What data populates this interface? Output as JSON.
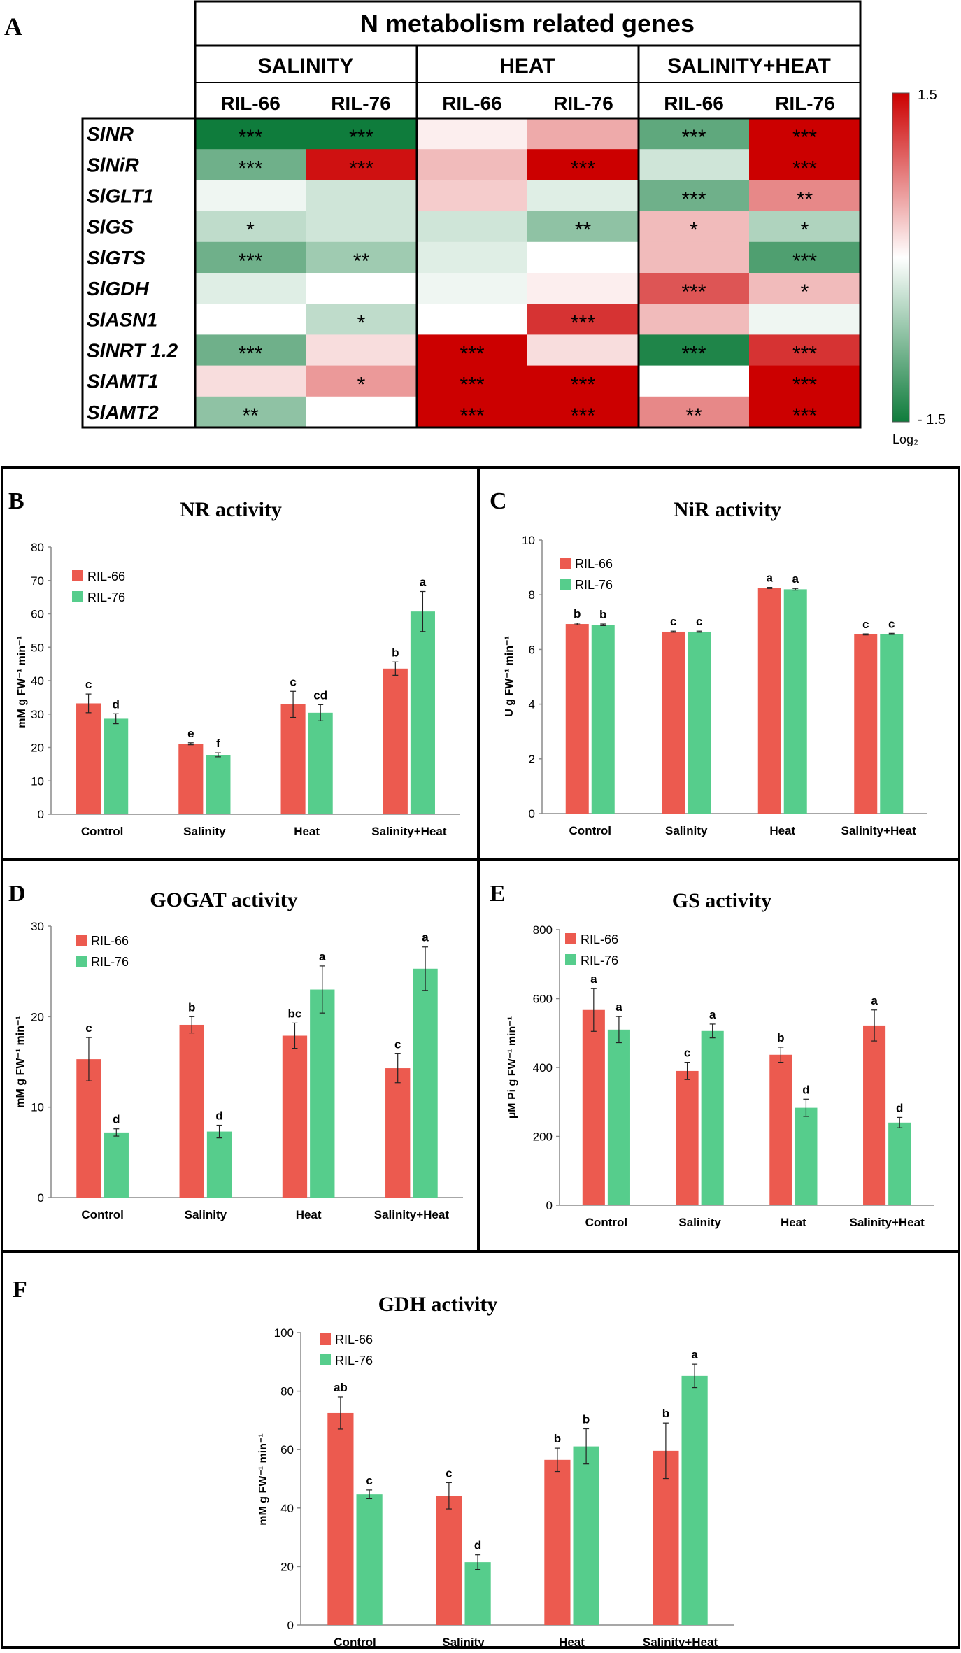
{
  "chart_data": [
    {
      "type": "heatmap",
      "panel_label": "A",
      "title": "N metabolism related genes",
      "conditions": [
        "SALINITY",
        "HEAT",
        "SALINITY+HEAT"
      ],
      "lines": [
        "RIL-66",
        "RIL-76",
        "RIL-66",
        "RIL-76",
        "RIL-66",
        "RIL-76"
      ],
      "genes": [
        "SlNR",
        "SlNiR",
        "SlGLT1",
        "SlGS",
        "SlGTS",
        "SlGDH",
        "SlASN1",
        "SlNRT 1.2",
        "SlAMT1",
        "SlAMT2"
      ],
      "values": [
        [
          -1.5,
          -1.5,
          0.1,
          0.5,
          -1.0,
          1.5
        ],
        [
          -0.9,
          1.4,
          0.4,
          1.5,
          -0.3,
          1.5
        ],
        [
          -0.1,
          -0.3,
          0.3,
          -0.2,
          -0.9,
          0.7
        ],
        [
          -0.4,
          -0.3,
          -0.3,
          -0.7,
          0.4,
          -0.5
        ],
        [
          -0.9,
          -0.6,
          -0.2,
          0.0,
          0.4,
          -1.1
        ],
        [
          -0.2,
          0.0,
          -0.1,
          0.1,
          1.0,
          0.4
        ],
        [
          0.0,
          -0.4,
          0.0,
          1.2,
          0.4,
          -0.1
        ],
        [
          -0.9,
          0.2,
          1.5,
          0.2,
          -1.4,
          1.2
        ],
        [
          0.2,
          0.6,
          1.5,
          1.5,
          0.0,
          1.5
        ],
        [
          -0.7,
          0.0,
          1.5,
          1.5,
          0.7,
          1.5
        ]
      ],
      "significance": [
        [
          "***",
          "***",
          "",
          "",
          "***",
          "***"
        ],
        [
          "***",
          "***",
          "",
          "***",
          "",
          "***"
        ],
        [
          "",
          "",
          "",
          "",
          "***",
          "**"
        ],
        [
          "*",
          "",
          "",
          "**",
          "*",
          "*"
        ],
        [
          "***",
          "**",
          "",
          "",
          "",
          "***"
        ],
        [
          "",
          "",
          "",
          "",
          "***",
          "*"
        ],
        [
          "",
          "*",
          "",
          "***",
          "",
          ""
        ],
        [
          "***",
          "",
          "***",
          "",
          "***",
          "***"
        ],
        [
          "",
          "*",
          "***",
          "***",
          "",
          "***"
        ],
        [
          "**",
          "",
          "***",
          "***",
          "**",
          "***"
        ]
      ],
      "scale": {
        "max_label": "1.5",
        "min_label": "- 1.5",
        "unit": "Log₂",
        "min": -1.5,
        "max": 1.5,
        "high_color": "#cc0000",
        "mid_color": "#ffffff",
        "low_color": "#0f7c3c"
      }
    },
    {
      "type": "bar",
      "panel_label": "B",
      "title": "NR activity",
      "ylabel": "mM g FW⁻¹ min⁻¹",
      "ylim": [
        0,
        80
      ],
      "yticks": [
        0,
        10,
        20,
        30,
        40,
        50,
        60,
        70,
        80
      ],
      "categories": [
        "Control",
        "Salinity",
        "Heat",
        "Salinity+Heat"
      ],
      "series": [
        {
          "name": "RIL-66",
          "color": "#ec5a4f",
          "values": [
            33.2,
            21.1,
            32.9,
            43.6
          ],
          "errors": [
            2.8,
            0.3,
            3.9,
            2.0
          ],
          "letters": [
            "c",
            "e",
            "c",
            "b"
          ]
        },
        {
          "name": "RIL-76",
          "color": "#56cd8c",
          "values": [
            28.6,
            17.8,
            30.4,
            60.7
          ],
          "errors": [
            1.5,
            0.6,
            2.4,
            6.0
          ],
          "letters": [
            "d",
            "f",
            "cd",
            "a"
          ]
        }
      ]
    },
    {
      "type": "bar",
      "panel_label": "C",
      "title": "NiR activity",
      "ylabel": "U g FW⁻¹ min⁻¹",
      "ylim": [
        0,
        10
      ],
      "yticks": [
        0,
        2,
        4,
        6,
        8,
        10
      ],
      "categories": [
        "Control",
        "Salinity",
        "Heat",
        "Salinity+Heat"
      ],
      "series": [
        {
          "name": "RIL-66",
          "color": "#ec5a4f",
          "values": [
            6.93,
            6.65,
            8.25,
            6.55
          ],
          "errors": [
            0.03,
            0.02,
            0.02,
            0.02
          ],
          "letters": [
            "b",
            "c",
            "a",
            "c"
          ]
        },
        {
          "name": "RIL-76",
          "color": "#56cd8c",
          "values": [
            6.9,
            6.65,
            8.2,
            6.57
          ],
          "errors": [
            0.03,
            0.02,
            0.03,
            0.02
          ],
          "letters": [
            "b",
            "c",
            "a",
            "c"
          ]
        }
      ]
    },
    {
      "type": "bar",
      "panel_label": "D",
      "title": "GOGAT activity",
      "ylabel": "mM g FW⁻¹ min⁻¹",
      "ylim": [
        0,
        30
      ],
      "yticks": [
        0,
        10,
        20,
        30
      ],
      "categories": [
        "Control",
        "Salinity",
        "Heat",
        "Salinity+Heat"
      ],
      "series": [
        {
          "name": "RIL-66",
          "color": "#ec5a4f",
          "values": [
            15.3,
            19.1,
            17.9,
            14.3
          ],
          "errors": [
            2.4,
            0.9,
            1.4,
            1.6
          ],
          "letters": [
            "c",
            "b",
            "bc",
            "c"
          ]
        },
        {
          "name": "RIL-76",
          "color": "#56cd8c",
          "values": [
            7.2,
            7.3,
            23.0,
            25.3
          ],
          "errors": [
            0.4,
            0.7,
            2.6,
            2.4
          ],
          "letters": [
            "d",
            "d",
            "a",
            "a"
          ]
        }
      ]
    },
    {
      "type": "bar",
      "panel_label": "E",
      "title": "GS activity",
      "ylabel": "µM Pi g FW⁻¹ min⁻¹",
      "ylim": [
        0,
        800
      ],
      "yticks": [
        0,
        200,
        400,
        600,
        800
      ],
      "categories": [
        "Control",
        "Salinity",
        "Heat",
        "Salinity+Heat"
      ],
      "series": [
        {
          "name": "RIL-66",
          "color": "#ec5a4f",
          "values": [
            567,
            390,
            437,
            522
          ],
          "errors": [
            62,
            25,
            22,
            45
          ],
          "letters": [
            "a",
            "c",
            "b",
            "a"
          ]
        },
        {
          "name": "RIL-76",
          "color": "#56cd8c",
          "values": [
            510,
            506,
            283,
            240
          ],
          "errors": [
            38,
            20,
            25,
            15
          ],
          "letters": [
            "a",
            "a",
            "d",
            "d"
          ]
        }
      ]
    },
    {
      "type": "bar",
      "panel_label": "F",
      "title": "GDH activity",
      "ylabel": "mM g FW⁻¹ min⁻¹",
      "ylim": [
        0,
        100
      ],
      "yticks": [
        0,
        20,
        40,
        60,
        80,
        100
      ],
      "categories": [
        "Control",
        "Salinity",
        "Heat",
        "Salinity+Heat"
      ],
      "series": [
        {
          "name": "RIL-66",
          "color": "#ec5a4f",
          "values": [
            72.5,
            44.2,
            56.5,
            59.6
          ],
          "errors": [
            5.5,
            4.5,
            4.0,
            9.5
          ],
          "letters": [
            "ab",
            "c",
            "b",
            "b"
          ]
        },
        {
          "name": "RIL-76",
          "color": "#56cd8c",
          "values": [
            44.7,
            21.5,
            61.1,
            85.2
          ],
          "errors": [
            1.5,
            2.5,
            6.0,
            4.0
          ],
          "letters": [
            "c",
            "d",
            "b",
            "a"
          ]
        }
      ]
    }
  ]
}
